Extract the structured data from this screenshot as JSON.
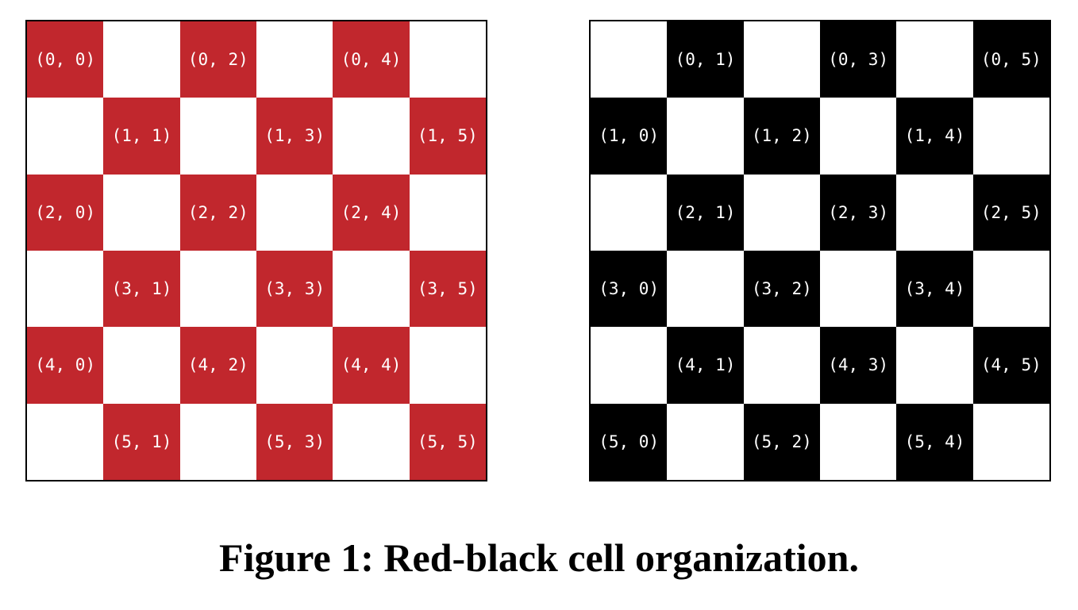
{
  "colors": {
    "red": "#c1272d",
    "black": "#000000",
    "white": "#ffffff",
    "label": "#ffffff"
  },
  "boards": [
    {
      "name": "red",
      "fill_color": "#c1272d",
      "rows": [
        [
          "(0, 0)",
          "",
          "(0, 2)",
          "",
          "(0, 4)",
          ""
        ],
        [
          "",
          "(1, 1)",
          "",
          "(1, 3)",
          "",
          "(1, 5)"
        ],
        [
          "(2, 0)",
          "",
          "(2, 2)",
          "",
          "(2, 4)",
          ""
        ],
        [
          "",
          "(3, 1)",
          "",
          "(3, 3)",
          "",
          "(3, 5)"
        ],
        [
          "(4, 0)",
          "",
          "(4, 2)",
          "",
          "(4, 4)",
          ""
        ],
        [
          "",
          "(5, 1)",
          "",
          "(5, 3)",
          "",
          "(5, 5)"
        ]
      ]
    },
    {
      "name": "black",
      "fill_color": "#000000",
      "rows": [
        [
          "",
          "(0, 1)",
          "",
          "(0, 3)",
          "",
          "(0, 5)"
        ],
        [
          "(1, 0)",
          "",
          "(1, 2)",
          "",
          "(1, 4)",
          ""
        ],
        [
          "",
          "(2, 1)",
          "",
          "(2, 3)",
          "",
          "(2, 5)"
        ],
        [
          "(3, 0)",
          "",
          "(3, 2)",
          "",
          "(3, 4)",
          ""
        ],
        [
          "",
          "(4, 1)",
          "",
          "(4, 3)",
          "",
          "(4, 5)"
        ],
        [
          "(5, 0)",
          "",
          "(5, 2)",
          "",
          "(5, 4)",
          ""
        ]
      ]
    }
  ],
  "caption": "Figure 1: Red-black cell organization."
}
